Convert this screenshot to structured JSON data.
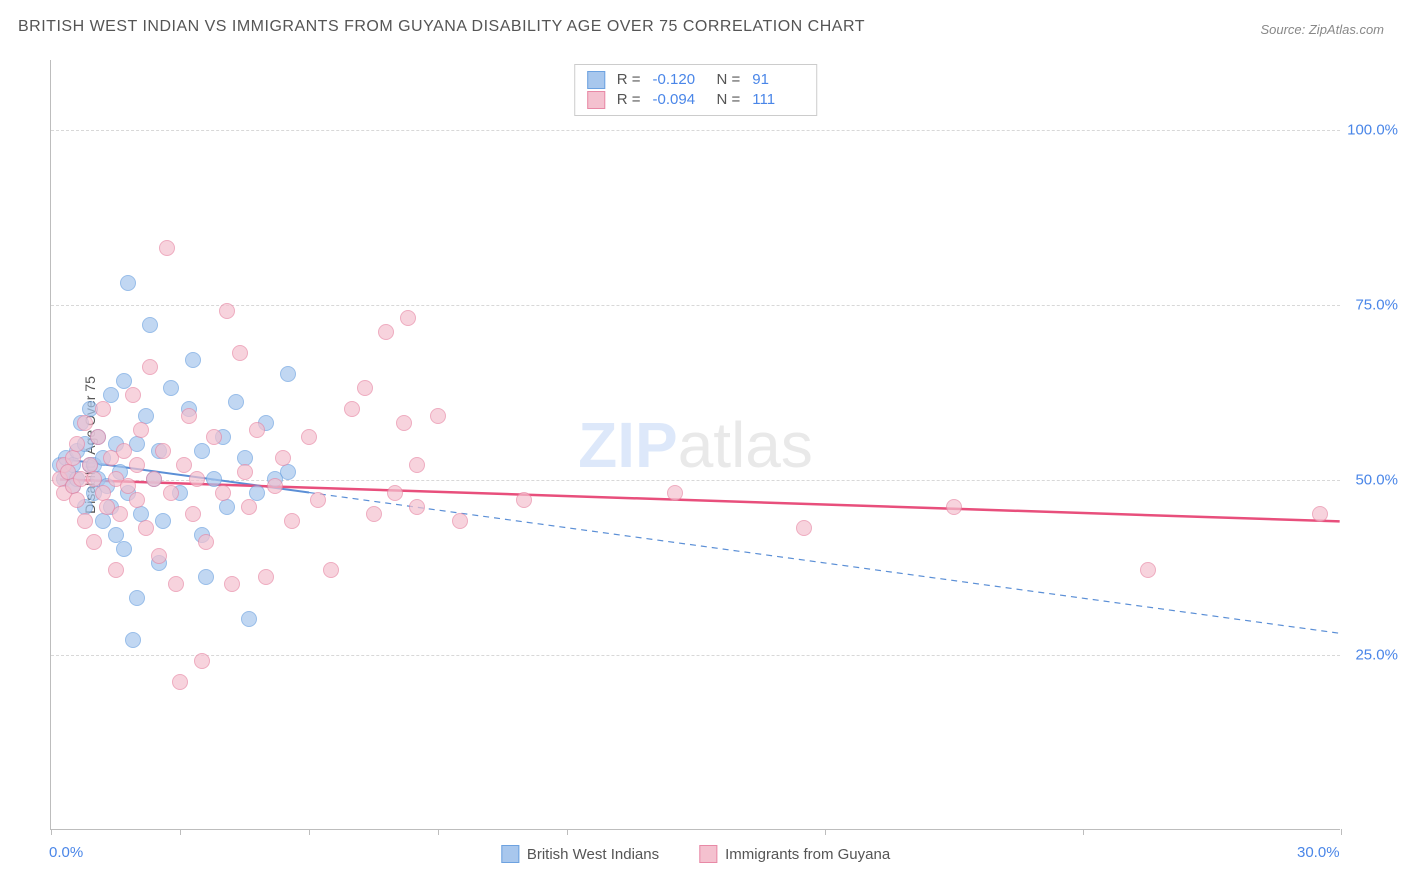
{
  "title": "BRITISH WEST INDIAN VS IMMIGRANTS FROM GUYANA DISABILITY AGE OVER 75 CORRELATION CHART",
  "source": "Source: ZipAtlas.com",
  "watermark": {
    "prefix": "ZIP",
    "suffix": "atlas"
  },
  "y_axis_label": "Disability Age Over 75",
  "chart": {
    "type": "scatter",
    "xlim": [
      0,
      30
    ],
    "ylim": [
      0,
      110
    ],
    "y_ticks": [
      25,
      50,
      75,
      100
    ],
    "y_tick_labels": [
      "25.0%",
      "50.0%",
      "75.0%",
      "100.0%"
    ],
    "x_ticks": [
      0,
      3,
      6,
      9,
      12,
      18,
      24,
      30
    ],
    "x_tick_labels_shown": {
      "0": "0.0%",
      "30": "30.0%"
    },
    "grid_color": "#d8d8d8",
    "axis_color": "#bdbdbd",
    "tick_label_color": "#4a86e8",
    "background_color": "#ffffff",
    "marker_radius": 8,
    "marker_stroke_width": 1.5,
    "marker_fill_opacity": 0.35,
    "series": [
      {
        "name": "British West Indians",
        "color_fill": "#a8c7ed",
        "color_stroke": "#6da2e0",
        "R": "-0.120",
        "N": "91",
        "trend": {
          "x1": 0.2,
          "y1": 53,
          "x2": 30,
          "y2": 28,
          "dash_after_x": 6,
          "color": "#5b8fd6",
          "width": 2
        },
        "points": [
          [
            0.2,
            52
          ],
          [
            0.3,
            50
          ],
          [
            0.4,
            51
          ],
          [
            0.35,
            53
          ],
          [
            0.5,
            49
          ],
          [
            0.5,
            52
          ],
          [
            0.6,
            50
          ],
          [
            0.6,
            54
          ],
          [
            0.7,
            58
          ],
          [
            0.8,
            46
          ],
          [
            0.8,
            55
          ],
          [
            0.9,
            52
          ],
          [
            0.9,
            60
          ],
          [
            1.0,
            48
          ],
          [
            1.0,
            52
          ],
          [
            1.1,
            50
          ],
          [
            1.1,
            56
          ],
          [
            1.2,
            44
          ],
          [
            1.2,
            53
          ],
          [
            1.3,
            49
          ],
          [
            1.4,
            62
          ],
          [
            1.4,
            46
          ],
          [
            1.5,
            42
          ],
          [
            1.5,
            55
          ],
          [
            1.6,
            51
          ],
          [
            1.7,
            40
          ],
          [
            1.7,
            64
          ],
          [
            1.8,
            78
          ],
          [
            1.8,
            48
          ],
          [
            1.9,
            27
          ],
          [
            2.0,
            33
          ],
          [
            2.0,
            55
          ],
          [
            2.1,
            45
          ],
          [
            2.2,
            59
          ],
          [
            2.3,
            72
          ],
          [
            2.4,
            50
          ],
          [
            2.5,
            38
          ],
          [
            2.5,
            54
          ],
          [
            2.6,
            44
          ],
          [
            2.8,
            63
          ],
          [
            3.0,
            48
          ],
          [
            3.2,
            60
          ],
          [
            3.3,
            67
          ],
          [
            3.5,
            54
          ],
          [
            3.5,
            42
          ],
          [
            3.6,
            36
          ],
          [
            3.8,
            50
          ],
          [
            4.0,
            56
          ],
          [
            4.1,
            46
          ],
          [
            4.3,
            61
          ],
          [
            4.5,
            53
          ],
          [
            4.6,
            30
          ],
          [
            4.8,
            48
          ],
          [
            5.0,
            58
          ],
          [
            5.2,
            50
          ],
          [
            5.5,
            65
          ],
          [
            5.5,
            51
          ]
        ]
      },
      {
        "name": "Immigrants from Guyana",
        "color_fill": "#f4c1cf",
        "color_stroke": "#e889a6",
        "R": "-0.094",
        "N": "111",
        "trend": {
          "x1": 0.2,
          "y1": 50,
          "x2": 30,
          "y2": 44,
          "color": "#e84f7c",
          "width": 2.5
        },
        "points": [
          [
            0.2,
            50
          ],
          [
            0.3,
            48
          ],
          [
            0.3,
            52
          ],
          [
            0.4,
            51
          ],
          [
            0.5,
            49
          ],
          [
            0.5,
            53
          ],
          [
            0.6,
            47
          ],
          [
            0.6,
            55
          ],
          [
            0.7,
            50
          ],
          [
            0.8,
            58
          ],
          [
            0.8,
            44
          ],
          [
            0.9,
            52
          ],
          [
            1.0,
            41
          ],
          [
            1.0,
            50
          ],
          [
            1.1,
            56
          ],
          [
            1.2,
            48
          ],
          [
            1.2,
            60
          ],
          [
            1.3,
            46
          ],
          [
            1.4,
            53
          ],
          [
            1.5,
            50
          ],
          [
            1.5,
            37
          ],
          [
            1.6,
            45
          ],
          [
            1.7,
            54
          ],
          [
            1.8,
            49
          ],
          [
            1.9,
            62
          ],
          [
            2.0,
            47
          ],
          [
            2.0,
            52
          ],
          [
            2.1,
            57
          ],
          [
            2.2,
            43
          ],
          [
            2.3,
            66
          ],
          [
            2.4,
            50
          ],
          [
            2.5,
            39
          ],
          [
            2.6,
            54
          ],
          [
            2.7,
            83
          ],
          [
            2.8,
            48
          ],
          [
            2.9,
            35
          ],
          [
            3.0,
            21
          ],
          [
            3.1,
            52
          ],
          [
            3.2,
            59
          ],
          [
            3.3,
            45
          ],
          [
            3.4,
            50
          ],
          [
            3.5,
            24
          ],
          [
            3.6,
            41
          ],
          [
            3.8,
            56
          ],
          [
            4.0,
            48
          ],
          [
            4.1,
            74
          ],
          [
            4.2,
            35
          ],
          [
            4.4,
            68
          ],
          [
            4.5,
            51
          ],
          [
            4.6,
            46
          ],
          [
            4.8,
            57
          ],
          [
            5.0,
            36
          ],
          [
            5.2,
            49
          ],
          [
            5.4,
            53
          ],
          [
            5.6,
            44
          ],
          [
            6.0,
            56
          ],
          [
            6.2,
            47
          ],
          [
            6.5,
            37
          ],
          [
            7.0,
            60
          ],
          [
            7.3,
            63
          ],
          [
            7.5,
            45
          ],
          [
            7.8,
            71
          ],
          [
            8.0,
            48
          ],
          [
            8.2,
            58
          ],
          [
            8.3,
            73
          ],
          [
            8.5,
            52
          ],
          [
            8.5,
            46
          ],
          [
            9.0,
            59
          ],
          [
            9.5,
            44
          ],
          [
            11.0,
            47
          ],
          [
            14.5,
            48
          ],
          [
            17.5,
            43
          ],
          [
            21.0,
            46
          ],
          [
            25.5,
            37
          ],
          [
            29.5,
            45
          ]
        ]
      }
    ]
  },
  "corr_legend": {
    "R_label": "R =",
    "N_label": "N ="
  }
}
